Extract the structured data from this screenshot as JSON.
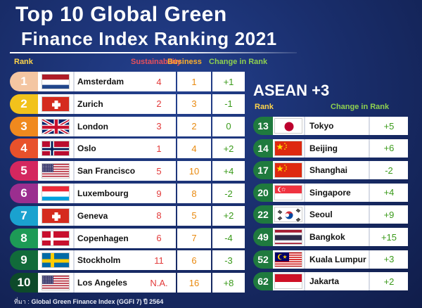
{
  "title_line1": "Top 10 Global Green",
  "title_line2": "Finance Index  Ranking 2021",
  "headers": {
    "rank": "Rank",
    "sustainability": "Sustainability",
    "business": "Business",
    "change": "Change in Rank"
  },
  "global": [
    {
      "rank": "1",
      "city": "Amsterdam",
      "sustainability": "4",
      "business": "1",
      "change": "+1",
      "flag": "netherlands-flag-icon",
      "badge_color": "#f4c6a2"
    },
    {
      "rank": "2",
      "city": "Zurich",
      "sustainability": "2",
      "business": "3",
      "change": "-1",
      "flag": "switzerland-flag-icon",
      "badge_color": "#f2c21b"
    },
    {
      "rank": "3",
      "city": "London",
      "sustainability": "3",
      "business": "2",
      "change": "0",
      "flag": "united-kingdom-flag-icon",
      "badge_color": "#f0891e"
    },
    {
      "rank": "4",
      "city": "Oslo",
      "sustainability": "1",
      "business": "4",
      "change": "+2",
      "flag": "norway-flag-icon",
      "badge_color": "#e8512b"
    },
    {
      "rank": "5",
      "city": "San Francisco",
      "sustainability": "5",
      "business": "10",
      "change": "+4",
      "flag": "usa-flag-icon",
      "badge_color": "#d4275f"
    },
    {
      "rank": "6",
      "city": "Luxembourg",
      "sustainability": "9",
      "business": "8",
      "change": "-2",
      "flag": "luxembourg-flag-icon",
      "badge_color": "#9b2e8f"
    },
    {
      "rank": "7",
      "city": "Geneva",
      "sustainability": "8",
      "business": "5",
      "change": "+2",
      "flag": "switzerland-flag-icon",
      "badge_color": "#1aa2cf"
    },
    {
      "rank": "8",
      "city": "Copenhagen",
      "sustainability": "6",
      "business": "7",
      "change": "-4",
      "flag": "denmark-flag-icon",
      "badge_color": "#1d9a56"
    },
    {
      "rank": "9",
      "city": "Stockholm",
      "sustainability": "11",
      "business": "6",
      "change": "-3",
      "flag": "sweden-flag-icon",
      "badge_color": "#116b3a"
    },
    {
      "rank": "10",
      "city": "Los Angeles",
      "sustainability": "N.A.",
      "business": "16",
      "change": "+8",
      "flag": "usa-flag-icon",
      "badge_color": "#0d4a2a"
    }
  ],
  "asean": {
    "title": "ASEAN +3",
    "rank_header": "Rank",
    "change_header": "Change in Rank",
    "rows": [
      {
        "rank": "13",
        "city": "Tokyo",
        "change": "+5",
        "flag": "japan-flag-icon"
      },
      {
        "rank": "14",
        "city": "Beijing",
        "change": "+6",
        "flag": "china-flag-icon"
      },
      {
        "rank": "17",
        "city": "Shanghai",
        "change": "-2",
        "flag": "china-flag-icon"
      },
      {
        "rank": "20",
        "city": "Singapore",
        "change": "+4",
        "flag": "singapore-flag-icon"
      },
      {
        "rank": "22",
        "city": "Seoul",
        "change": "+9",
        "flag": "south-korea-flag-icon"
      },
      {
        "rank": "49",
        "city": "Bangkok",
        "change": "+15",
        "flag": "thailand-flag-icon"
      },
      {
        "rank": "52",
        "city": "Kuala Lumpur",
        "change": "+3",
        "flag": "malaysia-flag-icon"
      },
      {
        "rank": "62",
        "city": "Jakarta",
        "change": "+2",
        "flag": "indonesia-flag-icon"
      }
    ],
    "badge_color": "#1f7a3e"
  },
  "source_prefix": "ที่มา :",
  "source_text": "Global Green Finance Index (GGFI 7) ปี 2564"
}
